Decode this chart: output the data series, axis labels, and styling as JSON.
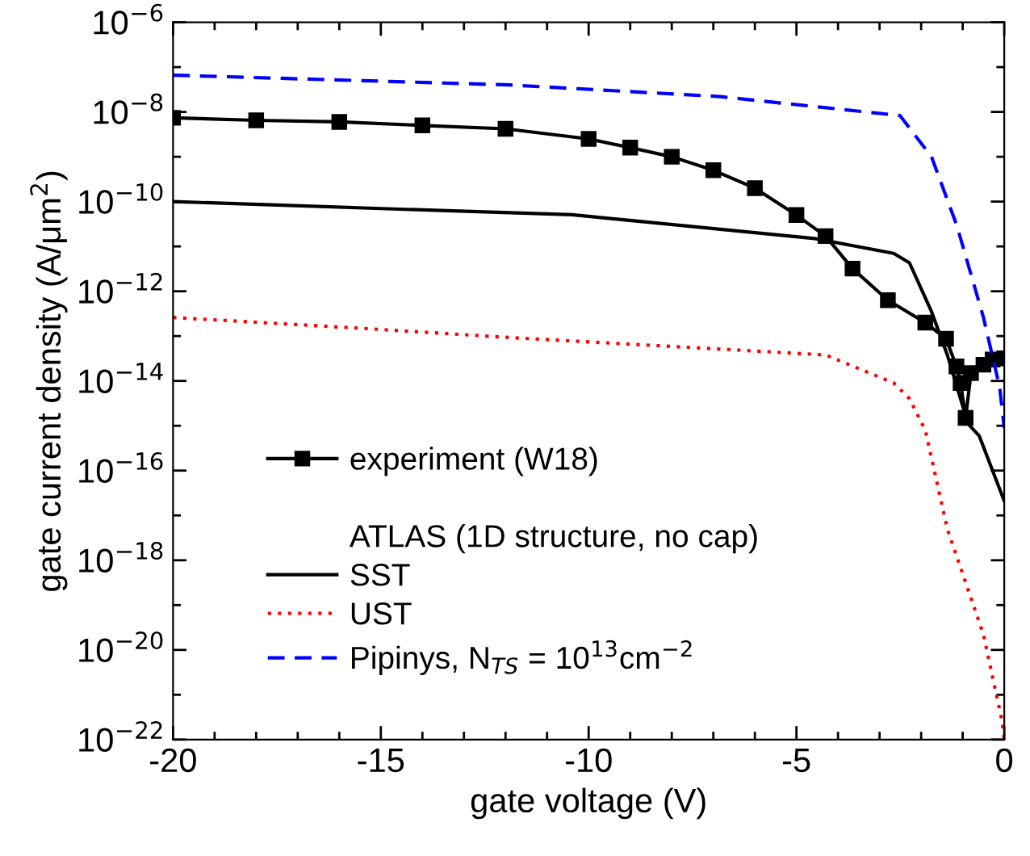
{
  "chart_data": {
    "type": "line",
    "xlabel": "gate voltage (V)",
    "ylabel": "gate current density (A/μm$^{2}$)",
    "log": "y",
    "legend": "bottom left",
    "legend_title": "ATLAS (1D structure, no cap)",
    "xlim": [
      -20,
      0
    ],
    "xticks": [
      -20,
      {
        "value": -19,
        "label": null
      },
      {
        "value": -18,
        "label": null
      },
      {
        "value": -17,
        "label": null
      },
      {
        "value": -16,
        "label": null
      },
      -15,
      {
        "value": -14,
        "label": null
      },
      {
        "value": -13,
        "label": null
      },
      {
        "value": -12,
        "label": null
      },
      {
        "value": -11,
        "label": null
      },
      -10,
      {
        "value": -9,
        "label": null
      },
      {
        "value": -8,
        "label": null
      },
      {
        "value": -7,
        "label": null
      },
      {
        "value": -6,
        "label": null
      },
      -5,
      {
        "value": -4,
        "label": null
      },
      {
        "value": -3,
        "label": null
      },
      {
        "value": -2,
        "label": null
      },
      {
        "value": -1,
        "label": null
      },
      0
    ],
    "ylim": [
      1e-22,
      1e-06
    ],
    "yticks": [
      {
        "value": 1e-22,
        "label": "10$^{−22}$"
      },
      {
        "value": 1e-21,
        "label": null
      },
      {
        "value": 1e-20,
        "label": "10$^{−20}$"
      },
      {
        "value": 1e-19,
        "label": null
      },
      {
        "value": 1e-18,
        "label": "10$^{−18}$"
      },
      {
        "value": 1e-17,
        "label": null
      },
      {
        "value": 1e-16,
        "label": "10$^{−16}$"
      },
      {
        "value": 1e-15,
        "label": null
      },
      {
        "value": 1e-14,
        "label": "10$^{−14}$"
      },
      {
        "value": 1e-13,
        "label": null
      },
      {
        "value": 1e-12,
        "label": "10$^{−12}$"
      },
      {
        "value": 1e-11,
        "label": null
      },
      {
        "value": 1e-10,
        "label": "10$^{−10}$"
      },
      {
        "value": 1e-09,
        "label": null
      },
      {
        "value": 1e-08,
        "label": "10$^{−8}$"
      },
      {
        "value": 1e-07,
        "label": null
      },
      {
        "value": 1e-06,
        "label": "10$^{−6}$"
      }
    ],
    "grid": false,
    "series": [
      {
        "name": "experiment (W18)",
        "color": "#000000",
        "marker": "square",
        "line_style": "solid",
        "x": [
          -20,
          -18,
          -16,
          -14,
          -12,
          -10,
          -9,
          -8,
          -7,
          -6,
          -5,
          -4.3,
          -3.65,
          -2.8,
          -1.9,
          -1.4,
          -1.15,
          -1.05,
          -0.93,
          -0.8,
          -0.5,
          -0.28,
          0
        ],
        "values": [
          7.4e-09,
          6.5e-09,
          6e-09,
          5e-09,
          4.2e-09,
          2.5e-09,
          1.6e-09,
          1e-09,
          5e-10,
          2e-10,
          5e-11,
          1.7e-11,
          3.2e-12,
          6.3e-13,
          2e-13,
          8.7e-14,
          2.1e-14,
          9e-15,
          1.5e-15,
          1.5e-14,
          2.3e-14,
          3e-14,
          3.2e-14
        ]
      },
      {
        "name": "SST",
        "color": "#000000",
        "marker": "none",
        "line_style": "solid",
        "x": [
          -20,
          -15,
          -10.4,
          -4.56,
          -2.66,
          -2.28,
          -1.75,
          -1.37,
          -0.87,
          -0.6,
          0
        ],
        "values": [
          1e-10,
          7e-11,
          5.1e-11,
          1.5e-11,
          7e-12,
          4.3e-12,
          3.5e-13,
          3.8e-14,
          1.1e-15,
          5.9e-16,
          2.1e-17
        ]
      },
      {
        "name": "UST",
        "color": "#ff0000",
        "marker": "none",
        "line_style": "dotted",
        "x": [
          -20,
          -15.5,
          -11.9,
          -4.3,
          -2.66,
          -2.28,
          -1.9,
          -1.37,
          -0.5,
          -0.05,
          0
        ],
        "values": [
          2.6e-13,
          1.5e-13,
          9.3e-14,
          3.8e-14,
          9e-15,
          4e-15,
          8e-16,
          5e-18,
          2.2e-20,
          2.5e-22,
          1e-22
        ]
      },
      {
        "name": "Pipinys, N$_{TS}$ = 10$^{13}$cm$^{−2}$",
        "color": "#0000ff",
        "marker": "none",
        "line_style": "dashed",
        "x": [
          -20,
          -11.9,
          -6.84,
          -2.51,
          -1.75,
          -1.14,
          -0.5,
          -0.11,
          0
        ],
        "values": [
          6.6e-08,
          4e-08,
          2.2e-08,
          8.3e-09,
          1e-09,
          2.9e-11,
          2.6e-13,
          7.2e-15,
          9e-16
        ]
      }
    ]
  }
}
